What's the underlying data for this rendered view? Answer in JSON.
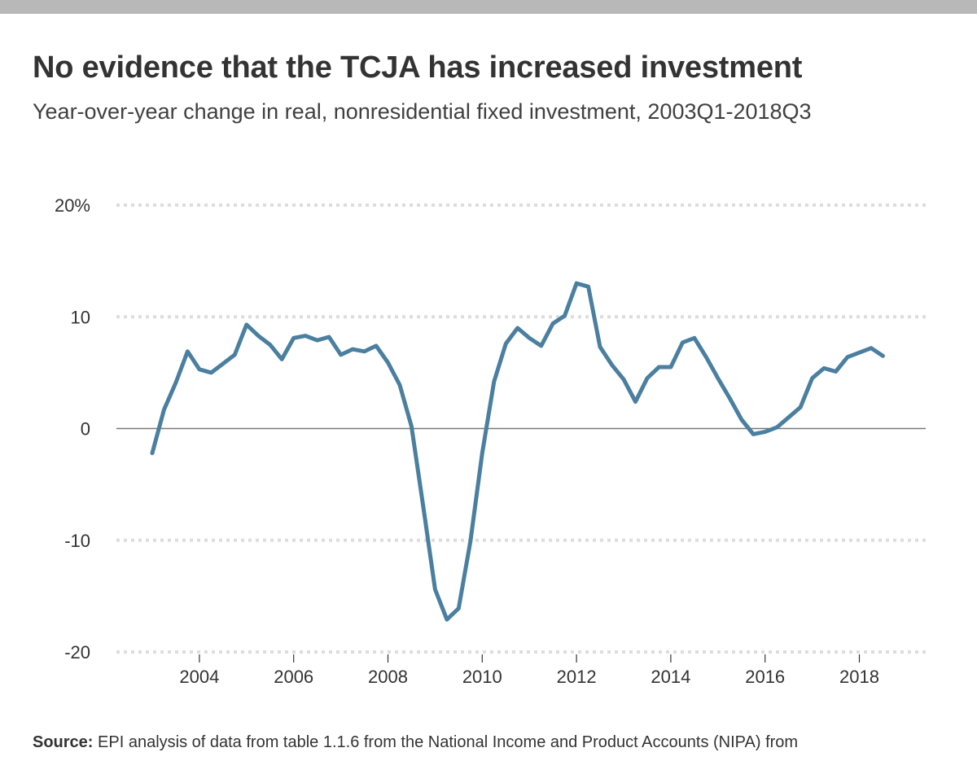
{
  "header": {
    "title": "No evidence that the TCJA has increased investment",
    "subtitle": "Year-over-year change in real, nonresidential fixed investment, 2003Q1-2018Q3"
  },
  "footer": {
    "source_label": "Source:",
    "source_text": "EPI analysis of data from table 1.1.6 from the National Income and Product Accounts (NIPA) from"
  },
  "colors": {
    "line": "#4a7fa0",
    "grid": "#dddddd",
    "zero_line": "#777777",
    "top_bar": "#b8b8b8"
  },
  "chart_data": {
    "type": "line",
    "title": "No evidence that the TCJA has increased investment",
    "subtitle": "Year-over-year change in real, nonresidential fixed investment, 2003Q1-2018Q3",
    "xlabel": "",
    "ylabel": "",
    "x_ticks": [
      "2004",
      "2006",
      "2008",
      "2010",
      "2012",
      "2014",
      "2016",
      "2018"
    ],
    "y_ticks": [
      "20%",
      "10",
      "0",
      "-10",
      "-20"
    ],
    "ylim": [
      -20,
      20
    ],
    "grid": true,
    "x": [
      "2003Q1",
      "2003Q2",
      "2003Q3",
      "2003Q4",
      "2004Q1",
      "2004Q2",
      "2004Q3",
      "2004Q4",
      "2005Q1",
      "2005Q2",
      "2005Q3",
      "2005Q4",
      "2006Q1",
      "2006Q2",
      "2006Q3",
      "2006Q4",
      "2007Q1",
      "2007Q2",
      "2007Q3",
      "2007Q4",
      "2008Q1",
      "2008Q2",
      "2008Q3",
      "2008Q4",
      "2009Q1",
      "2009Q2",
      "2009Q3",
      "2009Q4",
      "2010Q1",
      "2010Q2",
      "2010Q3",
      "2010Q4",
      "2011Q1",
      "2011Q2",
      "2011Q3",
      "2011Q4",
      "2012Q1",
      "2012Q2",
      "2012Q3",
      "2012Q4",
      "2013Q1",
      "2013Q2",
      "2013Q3",
      "2013Q4",
      "2014Q1",
      "2014Q2",
      "2014Q3",
      "2014Q4",
      "2015Q1",
      "2015Q2",
      "2015Q3",
      "2015Q4",
      "2016Q1",
      "2016Q2",
      "2016Q3",
      "2016Q4",
      "2017Q1",
      "2017Q2",
      "2017Q3",
      "2017Q4",
      "2018Q1",
      "2018Q2",
      "2018Q3"
    ],
    "series": [
      {
        "values": [
          -2.2,
          1.7,
          4.1,
          6.9,
          5.3,
          5.0,
          5.8,
          6.6,
          9.3,
          8.3,
          7.5,
          6.2,
          8.1,
          8.3,
          7.9,
          8.2,
          6.6,
          7.1,
          6.9,
          7.4,
          5.9,
          3.9,
          0.2,
          -7.0,
          -14.4,
          -17.1,
          -16.1,
          -10.1,
          -2.2,
          4.2,
          7.6,
          9.0,
          8.1,
          7.4,
          9.4,
          10.1,
          13.0,
          12.7,
          7.3,
          5.7,
          4.4,
          2.4,
          4.5,
          5.5,
          5.5,
          7.7,
          8.1,
          6.4,
          4.5,
          2.7,
          0.8,
          -0.5,
          -0.3,
          0.1,
          1.0,
          1.9,
          4.5,
          5.4,
          5.1,
          6.4,
          6.8,
          7.2,
          6.5
        ]
      }
    ]
  }
}
